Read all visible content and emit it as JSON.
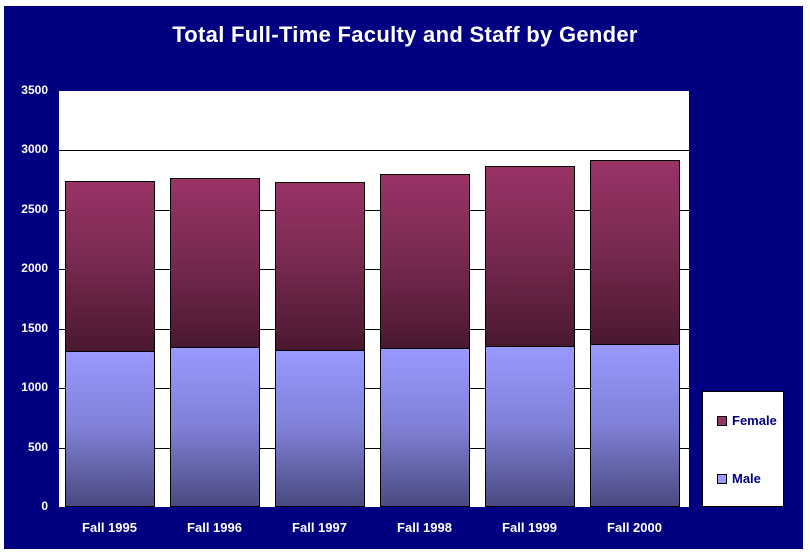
{
  "chart_data": {
    "type": "bar",
    "stacked": true,
    "title": "Total Full-Time Faculty and Staff by Gender",
    "xlabel": "",
    "ylabel": "",
    "categories": [
      "Fall 1995",
      "Fall 1996",
      "Fall 1997",
      "Fall 1998",
      "Fall 1999",
      "Fall 2000"
    ],
    "series": [
      {
        "name": "Male",
        "color": "#9999ff",
        "values": [
          1314,
          1350,
          1325,
          1341,
          1351,
          1375
        ]
      },
      {
        "name": "Female",
        "color": "#993366",
        "values": [
          1428,
          1417,
          1408,
          1459,
          1517,
          1543
        ]
      }
    ],
    "totals": [
      2742,
      2767,
      2733,
      2800,
      2868,
      2918
    ],
    "ylim": [
      0,
      3500
    ],
    "yticks": [
      0,
      500,
      1000,
      1500,
      2000,
      2500,
      3000,
      3500
    ],
    "grid": true,
    "legend_position": "right-bottom",
    "legend": [
      "Female",
      "Male"
    ]
  },
  "colors": {
    "background": "#000080",
    "plot": "#ffffff",
    "female": "#993366",
    "male": "#9999ff"
  }
}
